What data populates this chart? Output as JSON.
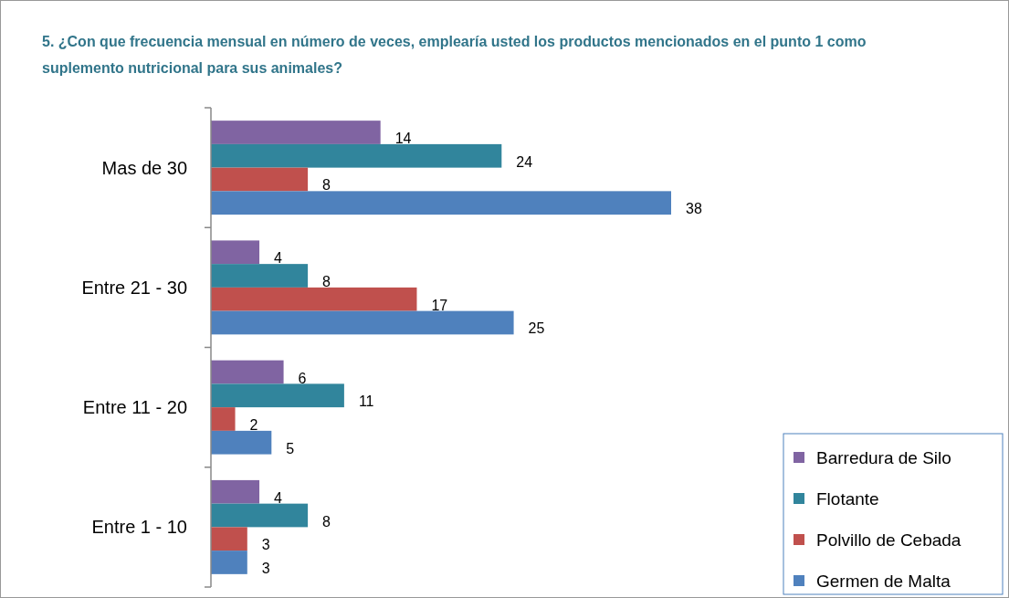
{
  "chart_data": {
    "type": "bar",
    "orientation": "horizontal",
    "title": "5. ¿Con que frecuencia mensual en número de veces, emplearía usted los productos  mencionados  en el punto 1 como suplemento nutricional  para sus animales?",
    "categories": [
      "Mas de 30",
      "Entre 21 - 30",
      "Entre 11 - 20",
      "Entre 1 - 10"
    ],
    "series": [
      {
        "name": "Barredura de Silo",
        "color": "#8064a2",
        "values": [
          14,
          4,
          6,
          4
        ]
      },
      {
        "name": "Flotante",
        "color": "#31859c",
        "values": [
          24,
          8,
          11,
          8
        ]
      },
      {
        "name": "Polvillo de Cebada",
        "color": "#c0504d",
        "values": [
          8,
          17,
          2,
          3
        ]
      },
      {
        "name": "Germen de Malta",
        "color": "#4f81bd",
        "values": [
          38,
          25,
          5,
          3
        ]
      }
    ],
    "data_labels": true,
    "legend": "bottom right",
    "tick_labels": "y",
    "grid": false
  }
}
